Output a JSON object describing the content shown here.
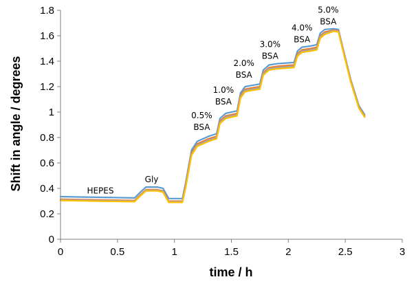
{
  "chart_data": {
    "type": "line",
    "title": "",
    "xlabel": "time / h",
    "ylabel": "Shift in angle / degrees",
    "xlim": [
      0,
      3
    ],
    "ylim": [
      0,
      1.8
    ],
    "xticks": [
      0,
      0.5,
      1,
      1.5,
      2,
      2.5,
      3
    ],
    "xtick_labels": [
      "0",
      "0.5",
      "1",
      "1.5",
      "2",
      "2.5",
      "3"
    ],
    "yticks": [
      0,
      0.2,
      0.4,
      0.6,
      0.8,
      1,
      1.2,
      1.4,
      1.6,
      1.8
    ],
    "ytick_labels": [
      "0",
      "0.2",
      "0.4",
      "0.6",
      "0.8",
      "1",
      "1.2",
      "1.4",
      "1.6",
      "1.8"
    ],
    "grid": false,
    "legend": "none",
    "series": [
      {
        "color": "#5b9bd5",
        "x": [
          0,
          0.3,
          0.65,
          0.7,
          0.75,
          0.85,
          0.9,
          0.95,
          1.07,
          1.1,
          1.15,
          1.2,
          1.3,
          1.37,
          1.4,
          1.45,
          1.55,
          1.58,
          1.62,
          1.68,
          1.75,
          1.78,
          1.83,
          1.9,
          2.05,
          2.08,
          2.12,
          2.2,
          2.25,
          2.28,
          2.32,
          2.4,
          2.44,
          2.48,
          2.55,
          2.62,
          2.67
        ],
        "y": [
          0.335,
          0.33,
          0.325,
          0.37,
          0.41,
          0.41,
          0.4,
          0.32,
          0.32,
          0.45,
          0.7,
          0.77,
          0.81,
          0.83,
          0.95,
          0.99,
          1.01,
          1.15,
          1.2,
          1.21,
          1.22,
          1.33,
          1.37,
          1.38,
          1.39,
          1.48,
          1.51,
          1.52,
          1.53,
          1.62,
          1.65,
          1.655,
          1.65,
          1.5,
          1.25,
          1.05,
          0.98
        ]
      },
      {
        "color": "#ed7d31",
        "x": [
          0,
          0.3,
          0.65,
          0.7,
          0.75,
          0.85,
          0.9,
          0.95,
          1.07,
          1.1,
          1.15,
          1.2,
          1.3,
          1.37,
          1.4,
          1.45,
          1.55,
          1.58,
          1.62,
          1.68,
          1.75,
          1.78,
          1.83,
          1.9,
          2.05,
          2.08,
          2.12,
          2.2,
          2.25,
          2.28,
          2.32,
          2.4,
          2.44,
          2.48,
          2.55,
          2.62,
          2.67
        ],
        "y": [
          0.315,
          0.31,
          0.305,
          0.35,
          0.39,
          0.39,
          0.38,
          0.3,
          0.3,
          0.43,
          0.68,
          0.75,
          0.79,
          0.81,
          0.93,
          0.97,
          0.99,
          1.13,
          1.18,
          1.19,
          1.2,
          1.31,
          1.35,
          1.36,
          1.37,
          1.46,
          1.49,
          1.5,
          1.51,
          1.6,
          1.63,
          1.645,
          1.64,
          1.49,
          1.24,
          1.04,
          0.97
        ]
      },
      {
        "color": "#a5a5a5",
        "x": [
          0,
          0.3,
          0.65,
          0.7,
          0.75,
          0.85,
          0.9,
          0.95,
          1.07,
          1.1,
          1.15,
          1.2,
          1.3,
          1.37,
          1.4,
          1.45,
          1.55,
          1.58,
          1.62,
          1.68,
          1.75,
          1.78,
          1.83,
          1.9,
          2.05,
          2.08,
          2.12,
          2.2,
          2.25,
          2.28,
          2.32,
          2.4,
          2.44,
          2.48,
          2.55,
          2.62,
          2.67
        ],
        "y": [
          0.31,
          0.305,
          0.3,
          0.345,
          0.385,
          0.385,
          0.375,
          0.295,
          0.295,
          0.42,
          0.67,
          0.74,
          0.78,
          0.8,
          0.92,
          0.96,
          0.98,
          1.12,
          1.17,
          1.18,
          1.19,
          1.3,
          1.34,
          1.35,
          1.36,
          1.45,
          1.48,
          1.49,
          1.5,
          1.59,
          1.62,
          1.64,
          1.635,
          1.485,
          1.235,
          1.035,
          0.965
        ]
      },
      {
        "color": "#ffc000",
        "x": [
          0,
          0.3,
          0.65,
          0.7,
          0.75,
          0.85,
          0.9,
          0.95,
          1.07,
          1.1,
          1.15,
          1.2,
          1.3,
          1.37,
          1.4,
          1.45,
          1.55,
          1.58,
          1.62,
          1.68,
          1.75,
          1.78,
          1.83,
          1.9,
          2.05,
          2.08,
          2.12,
          2.2,
          2.25,
          2.28,
          2.32,
          2.4,
          2.44,
          2.48,
          2.55,
          2.62,
          2.67
        ],
        "y": [
          0.305,
          0.3,
          0.295,
          0.34,
          0.38,
          0.38,
          0.37,
          0.29,
          0.29,
          0.41,
          0.66,
          0.73,
          0.77,
          0.79,
          0.91,
          0.95,
          0.97,
          1.11,
          1.16,
          1.17,
          1.18,
          1.29,
          1.33,
          1.34,
          1.35,
          1.44,
          1.47,
          1.48,
          1.49,
          1.58,
          1.61,
          1.635,
          1.63,
          1.48,
          1.23,
          1.03,
          0.96
        ]
      }
    ],
    "annotations": [
      {
        "lines": [
          "HEPES"
        ],
        "x": 0.35,
        "y": 0.36
      },
      {
        "lines": [
          "Gly"
        ],
        "x": 0.8,
        "y": 0.45
      },
      {
        "lines": [
          "0.5%",
          "BSA"
        ],
        "x": 1.24,
        "y": 0.86
      },
      {
        "lines": [
          "1.0%",
          "BSA"
        ],
        "x": 1.43,
        "y": 1.06
      },
      {
        "lines": [
          "2.0%",
          "BSA"
        ],
        "x": 1.61,
        "y": 1.27
      },
      {
        "lines": [
          "3.0%",
          "BSA"
        ],
        "x": 1.84,
        "y": 1.42
      },
      {
        "lines": [
          "4.0%",
          "BSA"
        ],
        "x": 2.12,
        "y": 1.55
      },
      {
        "lines": [
          "5.0%",
          "BSA"
        ],
        "x": 2.35,
        "y": 1.69
      }
    ]
  }
}
